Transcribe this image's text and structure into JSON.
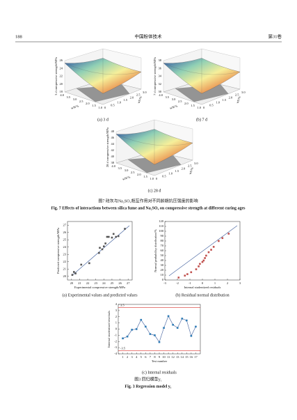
{
  "header": {
    "page": "188",
    "journal": "中国粉体技术",
    "volume": "第31卷"
  },
  "figure7": {
    "panels": [
      {
        "z_label": "3 d compressive strength/MPa",
        "z_ticks": [
          "18",
          "20",
          "22",
          "24",
          "26"
        ],
        "x_label": "wN/%",
        "x_ticks": [
          "1.0",
          "1.5",
          "2.0",
          "2.5",
          "3.0",
          "3.5",
          "4.0"
        ],
        "y_label": "wS/%",
        "y_ticks": [
          "0",
          "0.5",
          "1.0",
          "1.5",
          "2.0",
          "2.5",
          "3.0"
        ],
        "caption": "(a) 3 d"
      },
      {
        "z_label": "7 d compressive strength/MPa",
        "z_ticks": [
          "30",
          "32",
          "34",
          "36",
          "38"
        ],
        "x_label": "wN/%",
        "x_ticks": [
          "1.0",
          "1.5",
          "2.0",
          "2.5",
          "3.0",
          "3.5",
          "4.0"
        ],
        "y_label": "wS/%",
        "y_ticks": [
          "0",
          "0.5",
          "1.0",
          "1.5",
          "2.0",
          "2.5",
          "3.0"
        ],
        "caption": "(b) 7 d"
      },
      {
        "z_label": "28 d compressive strength/MPa",
        "z_ticks": [
          "38",
          "40",
          "42",
          "44",
          "46",
          "48"
        ],
        "x_label": "wN/%",
        "x_ticks": [
          "1.0",
          "1.5",
          "2.0",
          "2.5",
          "3.0",
          "3.5",
          "4.0"
        ],
        "y_label": "wS/%",
        "y_ticks": [
          "0",
          "0.5",
          "1.0",
          "1.5",
          "2.0",
          "2.5",
          "3.0"
        ],
        "caption": "(c) 28 d"
      }
    ],
    "caption_zh": "图7  硅灰与Na₂SO₄相互作用对不同龄期抗压强度的影响",
    "caption_en": "Fig. 7  Effects of interactions between silica fume and Na₂SO₄ on compressive strength at different curing ages"
  },
  "figure3": {
    "a": {
      "type": "scatter",
      "x": [
        20.1,
        20.3,
        20.5,
        21.2,
        22.2,
        23.4,
        23.5,
        23.8,
        24.0,
        24.2,
        24.4,
        24.6,
        25.0,
        25.2,
        25.5,
        25.8,
        26.6
      ],
      "y": [
        20.2,
        20.6,
        20.4,
        21.6,
        21.8,
        23.2,
        23.9,
        23.7,
        24.1,
        24.5,
        25.4,
        25.4,
        25.3,
        25.8,
        25.4,
        25.5,
        26.5
      ],
      "xlim": [
        19.5,
        27.5
      ],
      "ylim": [
        19.5,
        27.5
      ],
      "xticks": [
        20,
        21,
        22,
        23,
        24,
        25,
        26,
        27
      ],
      "yticks": [
        20,
        21,
        22,
        23,
        24,
        25,
        26,
        27
      ],
      "x_label": "Experimental compressive strength/MPa",
      "y_label": "Predicted compressive strength/MPa",
      "marker_color": "#555555",
      "line_color": "#3b5b9a",
      "caption": "(a) Experimental values and predicted values"
    },
    "b": {
      "type": "scatter",
      "x": [
        -1.9,
        -1.4,
        -1.2,
        -0.9,
        -0.5,
        -0.3,
        -0.2,
        0,
        0.1,
        0.2,
        0.3,
        0.5,
        0.7,
        0.9,
        1.3,
        1.6,
        2.1
      ],
      "y": [
        5,
        9,
        12,
        16,
        22,
        28,
        33,
        37,
        40,
        45,
        50,
        57,
        62,
        68,
        80,
        86,
        95
      ],
      "xlim": [
        -3,
        3
      ],
      "ylim": [
        0,
        120
      ],
      "xticks": [
        -3,
        -2,
        -1,
        0,
        1,
        2,
        3
      ],
      "yticks": [
        0,
        10,
        20,
        30,
        40,
        50,
        60,
        70,
        80,
        90,
        100,
        110,
        120
      ],
      "x_label": "Internal studentized residuals",
      "y_label": "Normal probability distribution/%",
      "marker_color": "#c0504d",
      "line_color": "#3b5b9a",
      "caption": "(b) Residual normal distribution"
    },
    "c": {
      "type": "line",
      "x": [
        1,
        2,
        3,
        4,
        5,
        6,
        7,
        8,
        9,
        10,
        11,
        12,
        13,
        14,
        15,
        16,
        17
      ],
      "values": [
        -1.5,
        -1.2,
        -0.1,
        0.0,
        1.5,
        0.4,
        -0.8,
        -1.0,
        -2.1,
        0.2,
        2.1,
        0.7,
        0.2,
        1.7,
        1.4,
        -1.1,
        0.4
      ],
      "xlim": [
        0,
        18
      ],
      "ylim": [
        -4,
        4
      ],
      "xticks": [
        1,
        2,
        3,
        4,
        5,
        6,
        7,
        8,
        9,
        10,
        11,
        12,
        13,
        14,
        15,
        16,
        17
      ],
      "yticks": [
        -4,
        -3,
        -2,
        -1,
        0,
        1,
        2,
        3,
        4
      ],
      "limits": [
        3.5,
        -3.5
      ],
      "limit_color": "#d9302c",
      "x_label": "Test number",
      "y_label": "Internal studentized residuals",
      "marker_color": "#2e7bb5",
      "line_color": "#3b5b9a",
      "caption": "(c) Internal residuals"
    },
    "caption_zh": "图3  回归模型y₁",
    "caption_en": "Fig. 3  Regression model y₁"
  }
}
